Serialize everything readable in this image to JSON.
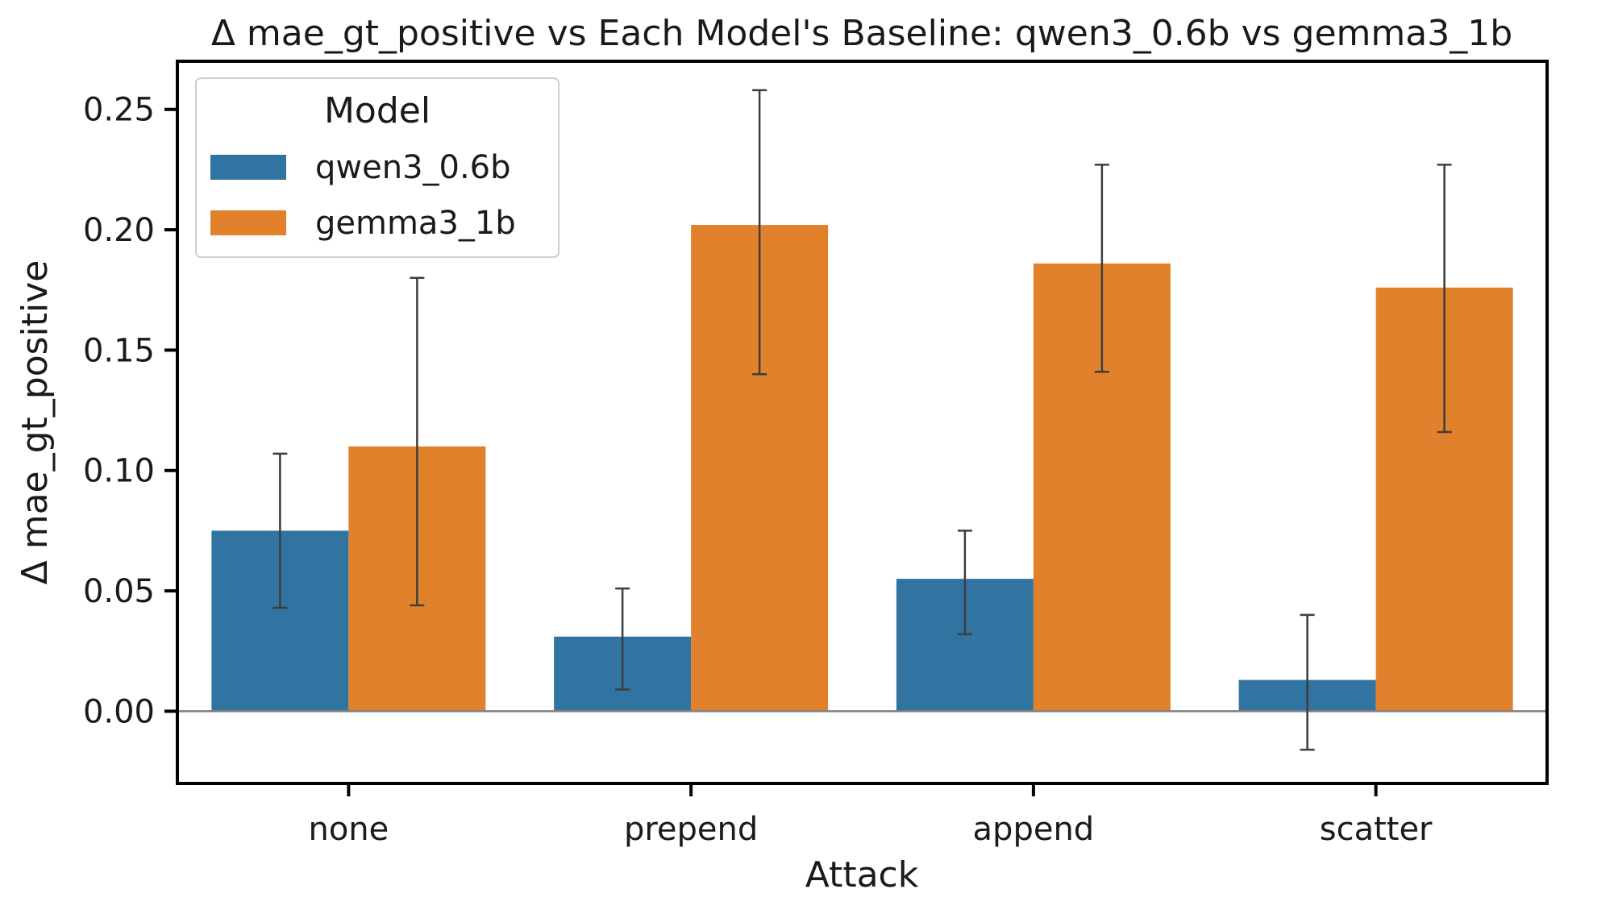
{
  "chart_data": {
    "type": "bar",
    "title": "Δ mae_gt_positive vs Each Model's Baseline: qwen3_0.6b vs gemma3_1b",
    "xlabel": "Attack",
    "ylabel": "Δ mae_gt_positive",
    "categories": [
      "none",
      "prepend",
      "append",
      "scatter"
    ],
    "ylim": [
      -0.03,
      0.27
    ],
    "yticks": [
      0.0,
      0.05,
      0.1,
      0.15,
      0.2,
      0.25
    ],
    "ytick_labels": [
      "0.00",
      "0.05",
      "0.10",
      "0.15",
      "0.20",
      "0.25"
    ],
    "grid": false,
    "reference_line": 0,
    "legend": {
      "title": "Model",
      "placement": "top-left"
    },
    "series": [
      {
        "name": "qwen3_0.6b",
        "color": "#3274a1",
        "values": [
          0.075,
          0.031,
          0.055,
          0.013
        ],
        "err_low": [
          0.043,
          0.009,
          0.032,
          -0.016
        ],
        "err_high": [
          0.107,
          0.051,
          0.075,
          0.04
        ]
      },
      {
        "name": "gemma3_1b",
        "color": "#e1812c",
        "values": [
          0.11,
          0.202,
          0.186,
          0.176
        ],
        "err_low": [
          0.044,
          0.14,
          0.141,
          0.116
        ],
        "err_high": [
          0.18,
          0.258,
          0.227,
          0.227
        ]
      }
    ]
  }
}
